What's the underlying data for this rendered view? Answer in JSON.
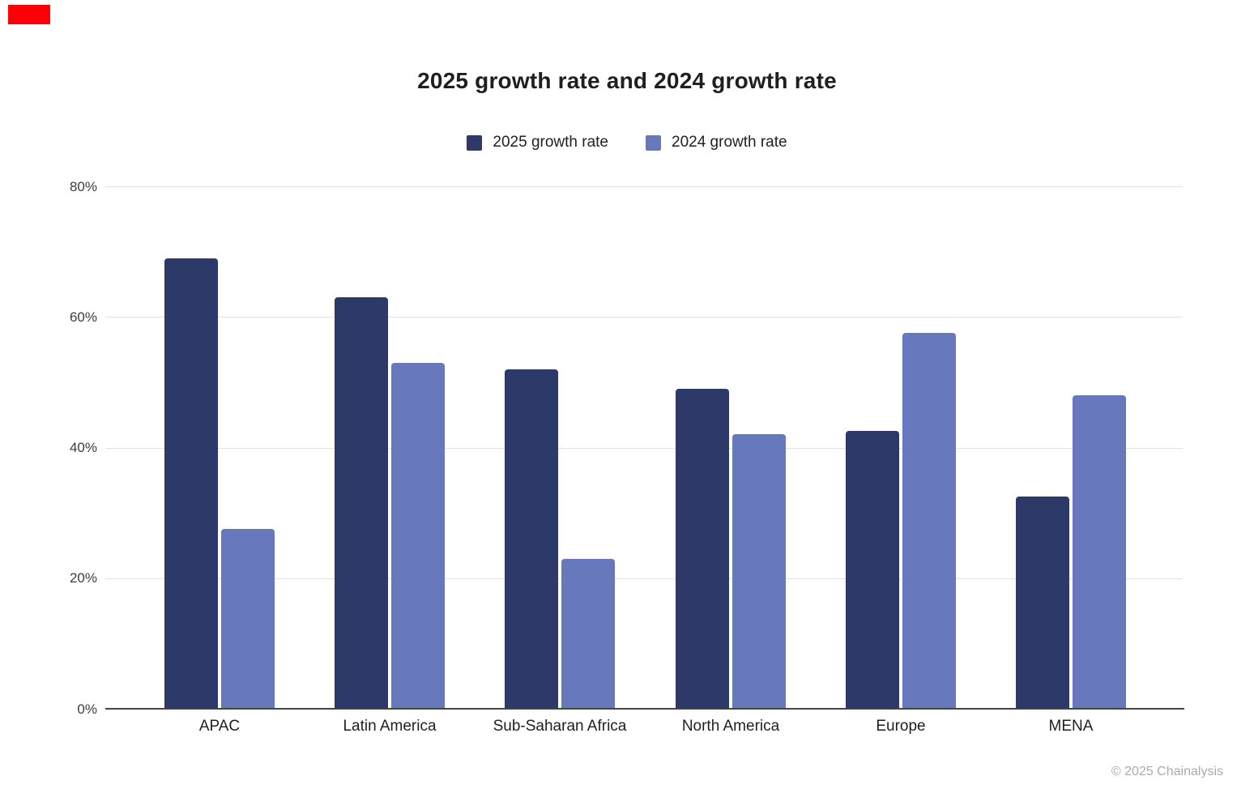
{
  "page": {
    "copyright": "© 2025 Chainalysis"
  },
  "marker": {
    "color": "#fb0007"
  },
  "chart_data": {
    "type": "bar",
    "title": "2025 growth rate and 2024 growth rate",
    "categories": [
      "APAC",
      "Latin America",
      "Sub-Saharan Africa",
      "North America",
      "Europe",
      "MENA"
    ],
    "series": [
      {
        "name": "2025 growth rate",
        "color": "#2d3a69",
        "values": [
          69,
          63,
          52,
          49,
          42.5,
          32.5
        ]
      },
      {
        "name": "2024 growth rate",
        "color": "#6778bd",
        "values": [
          27.5,
          53,
          23,
          42,
          57.5,
          48
        ]
      }
    ],
    "y_ticks": [
      "80%",
      "60%",
      "40%",
      "20%",
      "0%"
    ],
    "ylim": [
      0,
      80
    ],
    "grid": true,
    "legend_position": "top-center",
    "axis_color": "#454545",
    "grid_color": "#e1e1e1",
    "copyright_color": "#ababab"
  }
}
